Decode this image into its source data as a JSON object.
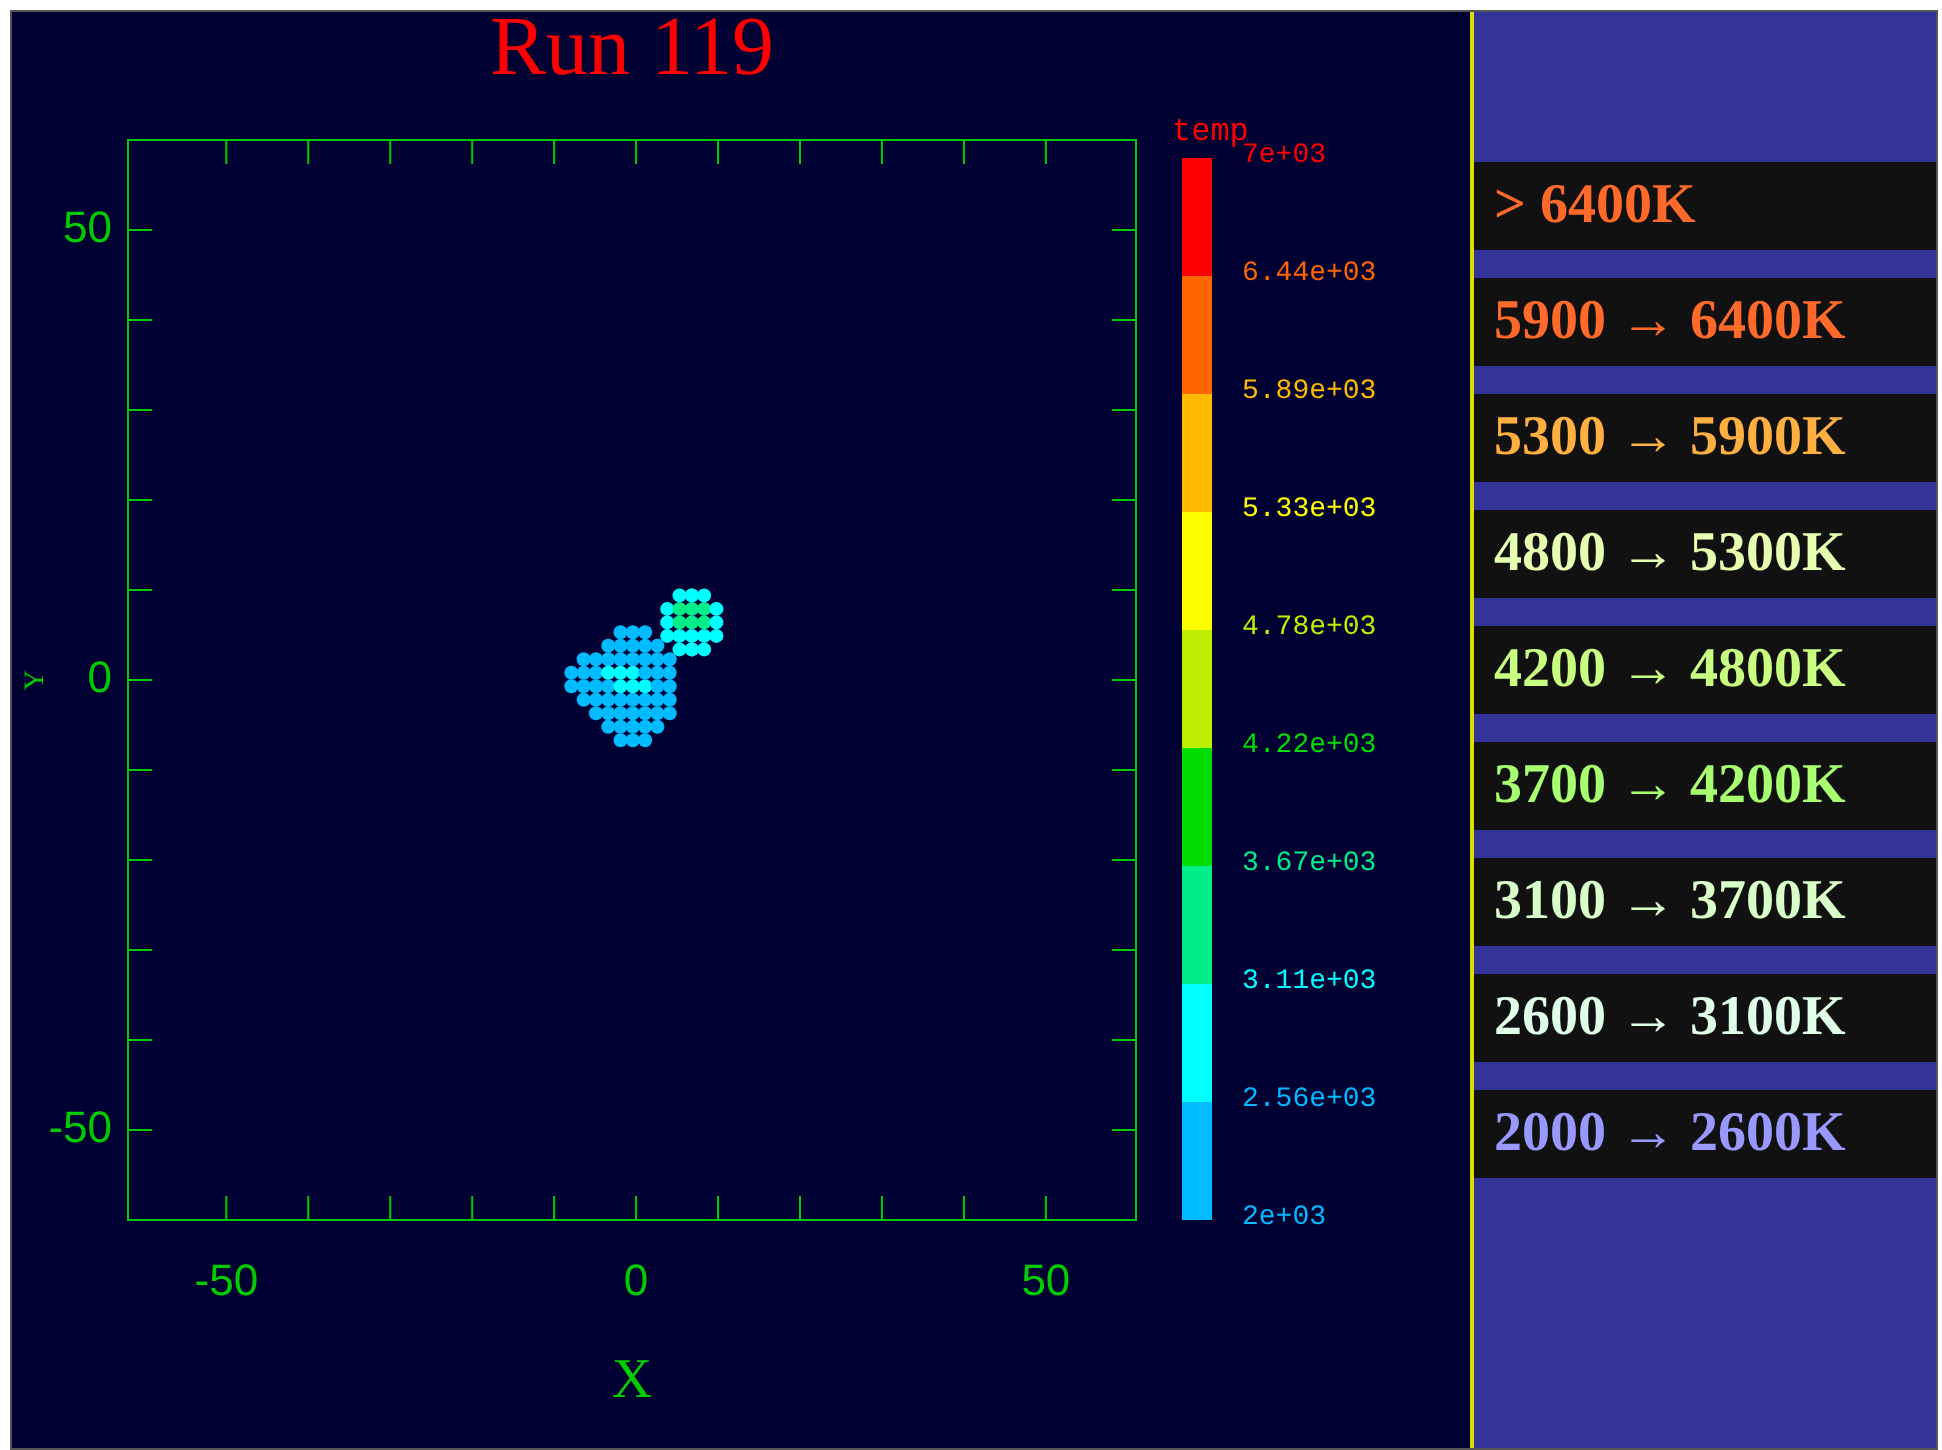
{
  "chart_data": [
    {
      "type": "scatter",
      "title": "Run 119",
      "xlabel": "X",
      "ylabel": "Y",
      "clabel": "temp",
      "xlim": [
        -62,
        61
      ],
      "ylim": [
        -60,
        60
      ],
      "xticks": [
        {
          "value": -50,
          "label": "-50"
        },
        {
          "value": -40,
          "label": null
        },
        {
          "value": -30,
          "label": null
        },
        {
          "value": -20,
          "label": null
        },
        {
          "value": -10,
          "label": null
        },
        0,
        {
          "value": 10,
          "label": null
        },
        {
          "value": 20,
          "label": null
        },
        {
          "value": 30,
          "label": null
        },
        {
          "value": 40,
          "label": null
        },
        50
      ],
      "yticks": [
        {
          "value": -50,
          "label": "-50"
        },
        {
          "value": -40,
          "label": null
        },
        {
          "value": -30,
          "label": null
        },
        {
          "value": -20,
          "label": null
        },
        {
          "value": -10,
          "label": null
        },
        0,
        {
          "value": 10,
          "label": null
        },
        {
          "value": 20,
          "label": null
        },
        {
          "value": 30,
          "label": null
        },
        {
          "value": 40,
          "label": null
        },
        50
      ],
      "clim": [
        2000,
        7000
      ],
      "cticks": [
        {
          "value": 2000,
          "label": "2e+03"
        },
        {
          "value": 2560,
          "label": "2.56e+03"
        },
        {
          "value": 3110,
          "label": "3.11e+03"
        },
        {
          "value": 3670,
          "label": "3.67e+03"
        },
        {
          "value": 4220,
          "label": "4.22e+03"
        },
        {
          "value": 4780,
          "label": "4.78e+03"
        },
        {
          "value": 5330,
          "label": "5.33e+03"
        },
        {
          "value": 5890,
          "label": "5.89e+03"
        },
        {
          "value": 6440,
          "label": "6.44e+03"
        },
        {
          "value": 7000,
          "label": "7e+03"
        }
      ],
      "grid": false,
      "legend": false,
      "marker": "circle",
      "x": [
        -1.9,
        -0.4,
        1.1,
        -3.4,
        -1.9,
        -0.4,
        1.1,
        2.6,
        -4.9,
        -3.4,
        -1.9,
        -0.4,
        1.1,
        2.6,
        4.1,
        -6.4,
        -4.9,
        -3.4,
        -1.9,
        -0.4,
        1.1,
        2.6,
        4.1,
        -7.9,
        -6.4,
        -4.9,
        -3.4,
        -1.9,
        -0.4,
        1.1,
        2.6,
        4.1,
        -7.9,
        -6.4,
        -4.9,
        -3.4,
        -1.9,
        -0.4,
        1.1,
        2.6,
        4.1,
        -6.4,
        -4.9,
        -3.4,
        -1.9,
        -0.4,
        1.1,
        2.6,
        4.1,
        -3.4,
        -1.9,
        -0.4,
        1.1,
        2.6,
        -1.9,
        -0.4,
        1.1,
        6.8,
        3.8,
        5.3,
        6.8,
        8.3,
        9.8,
        3.8,
        5.3,
        6.8,
        8.3,
        9.8,
        3.8,
        5.3,
        6.8,
        8.3,
        9.8,
        5.3,
        6.8,
        8.3,
        5.3,
        6.8,
        8.3,
        6.8
      ],
      "values": [
        -6.7,
        -6.7,
        -6.7,
        -5.2,
        -5.2,
        -5.2,
        -5.2,
        -5.2,
        -3.7,
        -3.7,
        -3.7,
        -3.7,
        -3.7,
        -3.7,
        -3.7,
        -2.2,
        -2.2,
        -2.2,
        -2.2,
        -2.2,
        -2.2,
        -2.2,
        -2.2,
        -0.7,
        -0.7,
        -0.7,
        -0.7,
        -0.7,
        -0.7,
        -0.7,
        -0.7,
        -0.7,
        0.8,
        0.8,
        0.8,
        0.8,
        0.8,
        0.8,
        0.8,
        0.8,
        0.8,
        2.3,
        2.3,
        2.3,
        2.3,
        2.3,
        2.3,
        2.3,
        2.3,
        3.8,
        3.8,
        3.8,
        3.8,
        3.8,
        5.3,
        5.3,
        5.3,
        3.4,
        4.9,
        4.9,
        4.9,
        4.9,
        4.9,
        6.4,
        6.4,
        6.4,
        6.4,
        6.4,
        7.9,
        7.9,
        7.9,
        7.9,
        7.9,
        9.4,
        9.4,
        9.4,
        3.4,
        3.4,
        3.4,
        9.4
      ],
      "colors": [
        "#00bbff",
        "#00bbff",
        "#00bbff",
        "#00bbff",
        "#00bbff",
        "#00bbff",
        "#00bbff",
        "#00bbff",
        "#00bbff",
        "#00bbff",
        "#00bbff",
        "#00bbff",
        "#00bbff",
        "#00bbff",
        "#00bbff",
        "#00bbff",
        "#00bbff",
        "#00bbff",
        "#00bbff",
        "#00bbff",
        "#00bbff",
        "#00bbff",
        "#00bbff",
        "#00bbff",
        "#00bbff",
        "#00bbff",
        "#00bbff",
        "#00ffff",
        "#00ffff",
        "#00ffff",
        "#00bbff",
        "#00bbff",
        "#00bbff",
        "#00bbff",
        "#00bbff",
        "#00ffff",
        "#00ffff",
        "#00ffff",
        "#00bbff",
        "#00bbff",
        "#00bbff",
        "#00bbff",
        "#00bbff",
        "#00bbff",
        "#00bbff",
        "#00bbff",
        "#00bbff",
        "#00bbff",
        "#00bbff",
        "#00bbff",
        "#00bbff",
        "#00bbff",
        "#00bbff",
        "#00bbff",
        "#00bbff",
        "#00bbff",
        "#00bbff",
        "#00ffff",
        "#00ffff",
        "#00ffff",
        "#00ffff",
        "#00ffff",
        "#00ffff",
        "#00ffff",
        "#00ee88",
        "#00ee88",
        "#00ee88",
        "#00ffff",
        "#00ffff",
        "#00ee88",
        "#00ee88",
        "#00ee88",
        "#00ffff",
        "#00ffff",
        "#00ffff",
        "#00ffff",
        "#00ffff",
        "#00ffff",
        "#00ffff",
        "#00ffff"
      ]
    },
    {
      "type": "other",
      "annotations": [
        "> 6400K",
        "5900 → 6400K",
        "5300 → 5900K",
        "4800 → 5300K",
        "4200 → 4800K",
        "3700 → 4200K",
        "3100 → 3700K",
        "2600 → 3100K",
        "2000 → 2600K"
      ],
      "colors": [
        "#ff6a2a",
        "#ff6a2a",
        "#ffb040",
        "#e6ffb0",
        "#c8ff80",
        "#a8ff70",
        "#d8ffc8",
        "#e0ffe8",
        "#9898ff"
      ]
    }
  ]
}
